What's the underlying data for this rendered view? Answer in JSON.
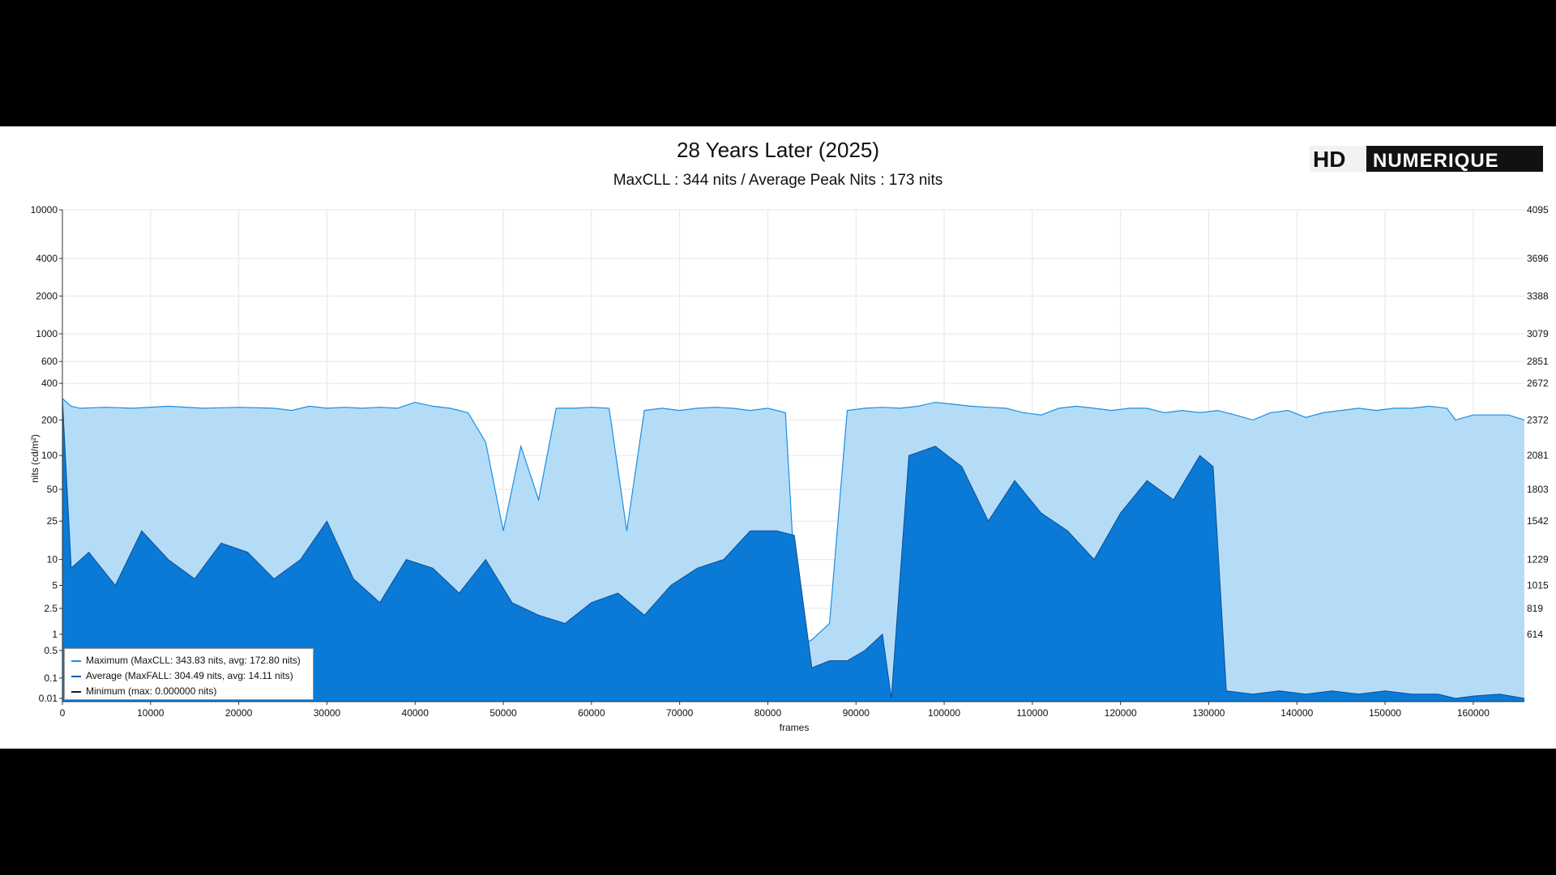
{
  "header": {
    "title": "28 Years Later (2025)",
    "subtitle": "MaxCLL : 344 nits / Average Peak Nits : 173 nits",
    "logo_text": "HD NUMERIQUE"
  },
  "legend": {
    "items": [
      {
        "label": "Maximum (MaxCLL: 343.83 nits, avg: 172.80 nits)",
        "color": "#1a8fe3"
      },
      {
        "label": "Average (MaxFALL: 304.49 nits, avg: 14.11 nits)",
        "color": "#0d5fae"
      },
      {
        "label": "Minimum (max: 0.000000 nits)",
        "color": "#1a1a1a"
      }
    ]
  },
  "colors": {
    "max_fill": "#b5dcf7",
    "max_line": "#1a8fe3",
    "avg_fill": "#0a7ad6",
    "avg_line": "#0b4f96",
    "grid": "#e6e6e6"
  },
  "chart_data": {
    "type": "area",
    "title": "28 Years Later (2025)",
    "subtitle": "MaxCLL : 344 nits / Average Peak Nits : 173 nits",
    "xlabel": "frames",
    "ylabel": "nits (cd/m²)",
    "xlim": [
      0,
      165800
    ],
    "ylim": [
      0.005,
      10000
    ],
    "yscale": "pq",
    "x_ticks": [
      0,
      10000,
      20000,
      30000,
      40000,
      50000,
      60000,
      70000,
      80000,
      90000,
      100000,
      110000,
      120000,
      130000,
      140000,
      150000,
      160000
    ],
    "y_ticks": [
      0.01,
      0.1,
      0.5,
      1,
      2.5,
      5,
      10,
      25,
      50,
      100,
      200,
      400,
      600,
      1000,
      2000,
      4000,
      10000
    ],
    "y_tick_labels": [
      "0.01",
      "0.1",
      "0.5",
      "1",
      "2.5",
      "5",
      "10",
      "25",
      "50",
      "100",
      "200",
      "400",
      "600",
      "1000",
      "2000",
      "4000",
      "10000"
    ],
    "right_ticks": [
      {
        "nits": 10000,
        "code": "4095"
      },
      {
        "nits": 4000,
        "code": "3696"
      },
      {
        "nits": 2000,
        "code": "3388"
      },
      {
        "nits": 1000,
        "code": "3079"
      },
      {
        "nits": 600,
        "code": "2851"
      },
      {
        "nits": 400,
        "code": "2672"
      },
      {
        "nits": 200,
        "code": "2372"
      },
      {
        "nits": 100,
        "code": "2081"
      },
      {
        "nits": 50,
        "code": "1803"
      },
      {
        "nits": 25,
        "code": "1542"
      },
      {
        "nits": 10,
        "code": "1229"
      },
      {
        "nits": 5,
        "code": "1015"
      },
      {
        "nits": 2.5,
        "code": "819"
      },
      {
        "nits": 1,
        "code": "614"
      }
    ],
    "grid": true,
    "legend_position": "bottom-left",
    "series": [
      {
        "name": "Maximum (MaxCLL: 343.83 nits, avg: 172.80 nits)",
        "x": [
          0,
          1000,
          2000,
          5000,
          8000,
          12000,
          16000,
          20000,
          24000,
          26000,
          28000,
          30000,
          32000,
          34000,
          36000,
          38000,
          40000,
          42000,
          44000,
          46000,
          48000,
          50000,
          52000,
          54000,
          56000,
          58000,
          60000,
          62000,
          64000,
          66000,
          68000,
          70000,
          72000,
          74000,
          76000,
          78000,
          80000,
          82000,
          83500,
          85000,
          87000,
          89000,
          91000,
          93000,
          95000,
          97000,
          99000,
          101000,
          103000,
          105000,
          107000,
          109000,
          111000,
          113000,
          115000,
          117000,
          119000,
          121000,
          123000,
          125000,
          127000,
          129000,
          131000,
          133000,
          135000,
          137000,
          139000,
          141000,
          143000,
          145000,
          147000,
          149000,
          151000,
          153000,
          155000,
          157000,
          158000,
          160000,
          162000,
          164000,
          165800
        ],
        "y": [
          300,
          260,
          250,
          255,
          250,
          260,
          250,
          255,
          250,
          240,
          260,
          250,
          255,
          250,
          255,
          250,
          280,
          260,
          250,
          230,
          130,
          20,
          120,
          40,
          250,
          250,
          255,
          250,
          20,
          240,
          250,
          240,
          250,
          255,
          250,
          240,
          250,
          230,
          0.6,
          0.8,
          1.5,
          240,
          250,
          255,
          250,
          260,
          280,
          270,
          260,
          255,
          250,
          230,
          220,
          250,
          260,
          250,
          240,
          250,
          250,
          230,
          240,
          230,
          240,
          220,
          200,
          230,
          240,
          210,
          230,
          240,
          250,
          240,
          250,
          250,
          260,
          250,
          200,
          220,
          220,
          220,
          200
        ]
      },
      {
        "name": "Average (MaxFALL: 304.49 nits, avg: 14.11 nits)",
        "x": [
          0,
          1000,
          3000,
          6000,
          9000,
          12000,
          15000,
          18000,
          21000,
          24000,
          27000,
          30000,
          33000,
          36000,
          39000,
          42000,
          45000,
          48000,
          51000,
          54000,
          57000,
          60000,
          63000,
          66000,
          69000,
          72000,
          75000,
          78000,
          81000,
          83000,
          85000,
          87000,
          89000,
          91000,
          93000,
          94000,
          96000,
          99000,
          102000,
          105000,
          108000,
          111000,
          114000,
          117000,
          120000,
          123000,
          126000,
          129000,
          130500,
          132000,
          135000,
          138000,
          141000,
          144000,
          147000,
          150000,
          153000,
          156000,
          158000,
          160000,
          163000,
          165800
        ],
        "y": [
          300,
          8,
          12,
          5,
          20,
          10,
          6,
          15,
          12,
          6,
          10,
          25,
          6,
          3,
          10,
          8,
          4,
          10,
          3,
          2,
          1.5,
          3,
          4,
          2,
          5,
          8,
          10,
          20,
          20,
          18,
          0.2,
          0.3,
          0.3,
          0.5,
          1,
          0.01,
          100,
          120,
          80,
          25,
          60,
          30,
          20,
          10,
          30,
          60,
          40,
          100,
          80,
          0.03,
          0.02,
          0.03,
          0.02,
          0.03,
          0.02,
          0.03,
          0.02,
          0.02,
          0.01,
          0.015,
          0.02,
          0.01
        ]
      },
      {
        "name": "Minimum (max: 0.000000 nits)",
        "x": [
          0,
          165800
        ],
        "y": [
          0,
          0
        ]
      }
    ]
  }
}
